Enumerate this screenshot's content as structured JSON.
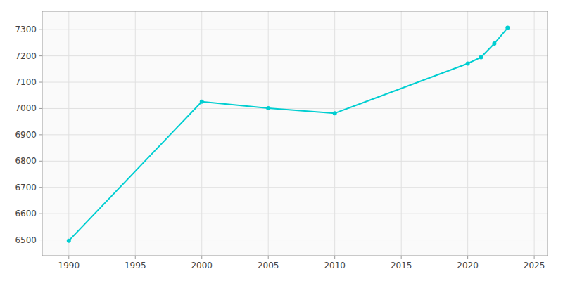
{
  "chart_data": {
    "type": "line",
    "x": [
      1990,
      2000,
      2005,
      2010,
      2020,
      2021,
      2022,
      2023
    ],
    "values": [
      6497,
      7026,
      7001,
      6982,
      7171,
      7195,
      7247,
      7307
    ],
    "color": "#00CED1",
    "marker": "circle",
    "xlim": [
      1988,
      2026
    ],
    "ylim": [
      6440,
      7370
    ],
    "xticks": [
      1990,
      1995,
      2000,
      2005,
      2010,
      2015,
      2020,
      2025
    ],
    "yticks": [
      6500,
      6600,
      6700,
      6800,
      6900,
      7000,
      7100,
      7200,
      7300
    ],
    "grid": true
  }
}
